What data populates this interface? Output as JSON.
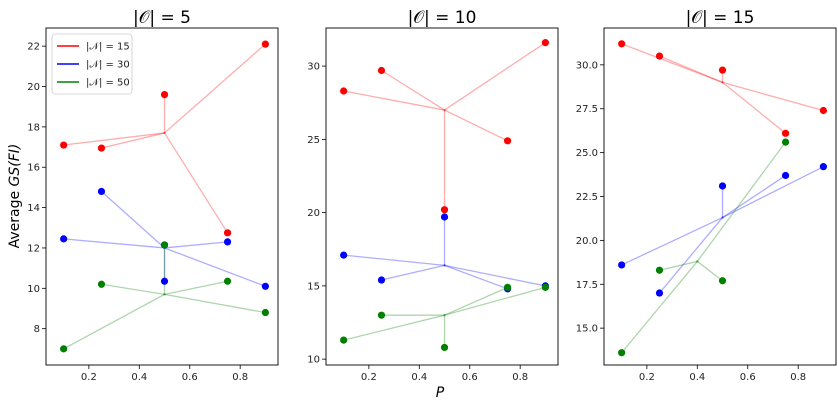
{
  "chart_data": {
    "type": "scatter",
    "ylabel_prefix": "Average ",
    "ylabel_math": "GS(FI)",
    "xlabel": "P",
    "legend": {
      "placement": "top-left",
      "entries": [
        {
          "label": "|𝒩| = 15",
          "color": "#ff0000"
        },
        {
          "label": "|𝒩| = 30",
          "color": "#0000ff"
        },
        {
          "label": "|𝒩| = 50",
          "color": "#008000"
        }
      ]
    },
    "panels": [
      {
        "title": "|𝒪| = 5",
        "xlim": [
          0.03,
          0.95
        ],
        "ylim": [
          6.2,
          22.9
        ],
        "xticks": [
          0.2,
          0.4,
          0.6,
          0.8
        ],
        "yticks": [
          8,
          10,
          12,
          14,
          16,
          18,
          20,
          22
        ],
        "ytick_labels": [
          "8",
          "10",
          "12",
          "14",
          "16",
          "18",
          "20",
          "22"
        ],
        "series": [
          {
            "name": "|𝒩| = 15",
            "color": "#ff0000",
            "points": [
              [
                0.1,
                17.1
              ],
              [
                0.25,
                16.95
              ],
              [
                0.5,
                19.6
              ],
              [
                0.75,
                12.75
              ],
              [
                0.9,
                22.1
              ]
            ],
            "hub": [
              0.5,
              17.7
            ]
          },
          {
            "name": "|𝒩| = 30",
            "color": "#0000ff",
            "points": [
              [
                0.1,
                12.45
              ],
              [
                0.25,
                14.8
              ],
              [
                0.5,
                12.15
              ],
              [
                0.5,
                10.35
              ],
              [
                0.75,
                12.3
              ],
              [
                0.9,
                10.1
              ]
            ],
            "hub": [
              0.5,
              12.0
            ]
          },
          {
            "name": "|𝒩| = 50",
            "color": "#008000",
            "points": [
              [
                0.1,
                7.0
              ],
              [
                0.25,
                10.2
              ],
              [
                0.5,
                12.15
              ],
              [
                0.75,
                10.35
              ],
              [
                0.9,
                8.8
              ]
            ],
            "hub": [
              0.5,
              9.7
            ]
          }
        ]
      },
      {
        "title": "|𝒪| = 10",
        "xlim": [
          0.03,
          0.95
        ],
        "ylim": [
          9.6,
          32.6
        ],
        "xticks": [
          0.2,
          0.4,
          0.6,
          0.8
        ],
        "yticks": [
          10,
          15,
          20,
          25,
          30
        ],
        "ytick_labels": [
          "10",
          "15",
          "20",
          "25",
          "30"
        ],
        "series": [
          {
            "name": "|𝒩| = 15",
            "color": "#ff0000",
            "points": [
              [
                0.1,
                28.3
              ],
              [
                0.25,
                29.7
              ],
              [
                0.5,
                20.2
              ],
              [
                0.75,
                24.9
              ],
              [
                0.9,
                31.6
              ]
            ],
            "hub": [
              0.5,
              27.0
            ]
          },
          {
            "name": "|𝒩| = 30",
            "color": "#0000ff",
            "points": [
              [
                0.1,
                17.1
              ],
              [
                0.25,
                15.4
              ],
              [
                0.5,
                19.7
              ],
              [
                0.75,
                14.8
              ],
              [
                0.9,
                15.0
              ]
            ],
            "hub": [
              0.5,
              16.4
            ]
          },
          {
            "name": "|𝒩| = 50",
            "color": "#008000",
            "points": [
              [
                0.1,
                11.3
              ],
              [
                0.25,
                13.0
              ],
              [
                0.5,
                10.8
              ],
              [
                0.75,
                14.9
              ],
              [
                0.9,
                14.9
              ]
            ],
            "hub": [
              0.5,
              13.0
            ]
          }
        ]
      },
      {
        "title": "|𝒪| = 15",
        "xlim": [
          0.03,
          0.95
        ],
        "ylim": [
          12.9,
          32.1
        ],
        "xticks": [
          0.2,
          0.4,
          0.6,
          0.8
        ],
        "yticks": [
          15,
          17.5,
          20,
          22.5,
          25,
          27.5,
          30
        ],
        "ytick_labels": [
          "15.0",
          "17.5",
          "20.0",
          "22.5",
          "25.0",
          "27.5",
          "30.0"
        ],
        "series": [
          {
            "name": "|𝒩| = 15",
            "color": "#ff0000",
            "points": [
              [
                0.1,
                31.2
              ],
              [
                0.25,
                30.5
              ],
              [
                0.5,
                29.7
              ],
              [
                0.75,
                26.1
              ],
              [
                0.9,
                27.4
              ]
            ],
            "hub": [
              0.5,
              29.0
            ]
          },
          {
            "name": "|𝒩| = 30",
            "color": "#0000ff",
            "points": [
              [
                0.1,
                18.6
              ],
              [
                0.25,
                17.0
              ],
              [
                0.5,
                23.1
              ],
              [
                0.75,
                23.7
              ],
              [
                0.9,
                24.2
              ]
            ],
            "hub": [
              0.5,
              21.3
            ]
          },
          {
            "name": "|𝒩| = 50",
            "color": "#008000",
            "points": [
              [
                0.1,
                13.6
              ],
              [
                0.25,
                18.3
              ],
              [
                0.5,
                17.7
              ],
              [
                0.75,
                25.6
              ]
            ],
            "hub": [
              0.4,
              18.8
            ]
          }
        ]
      }
    ]
  }
}
